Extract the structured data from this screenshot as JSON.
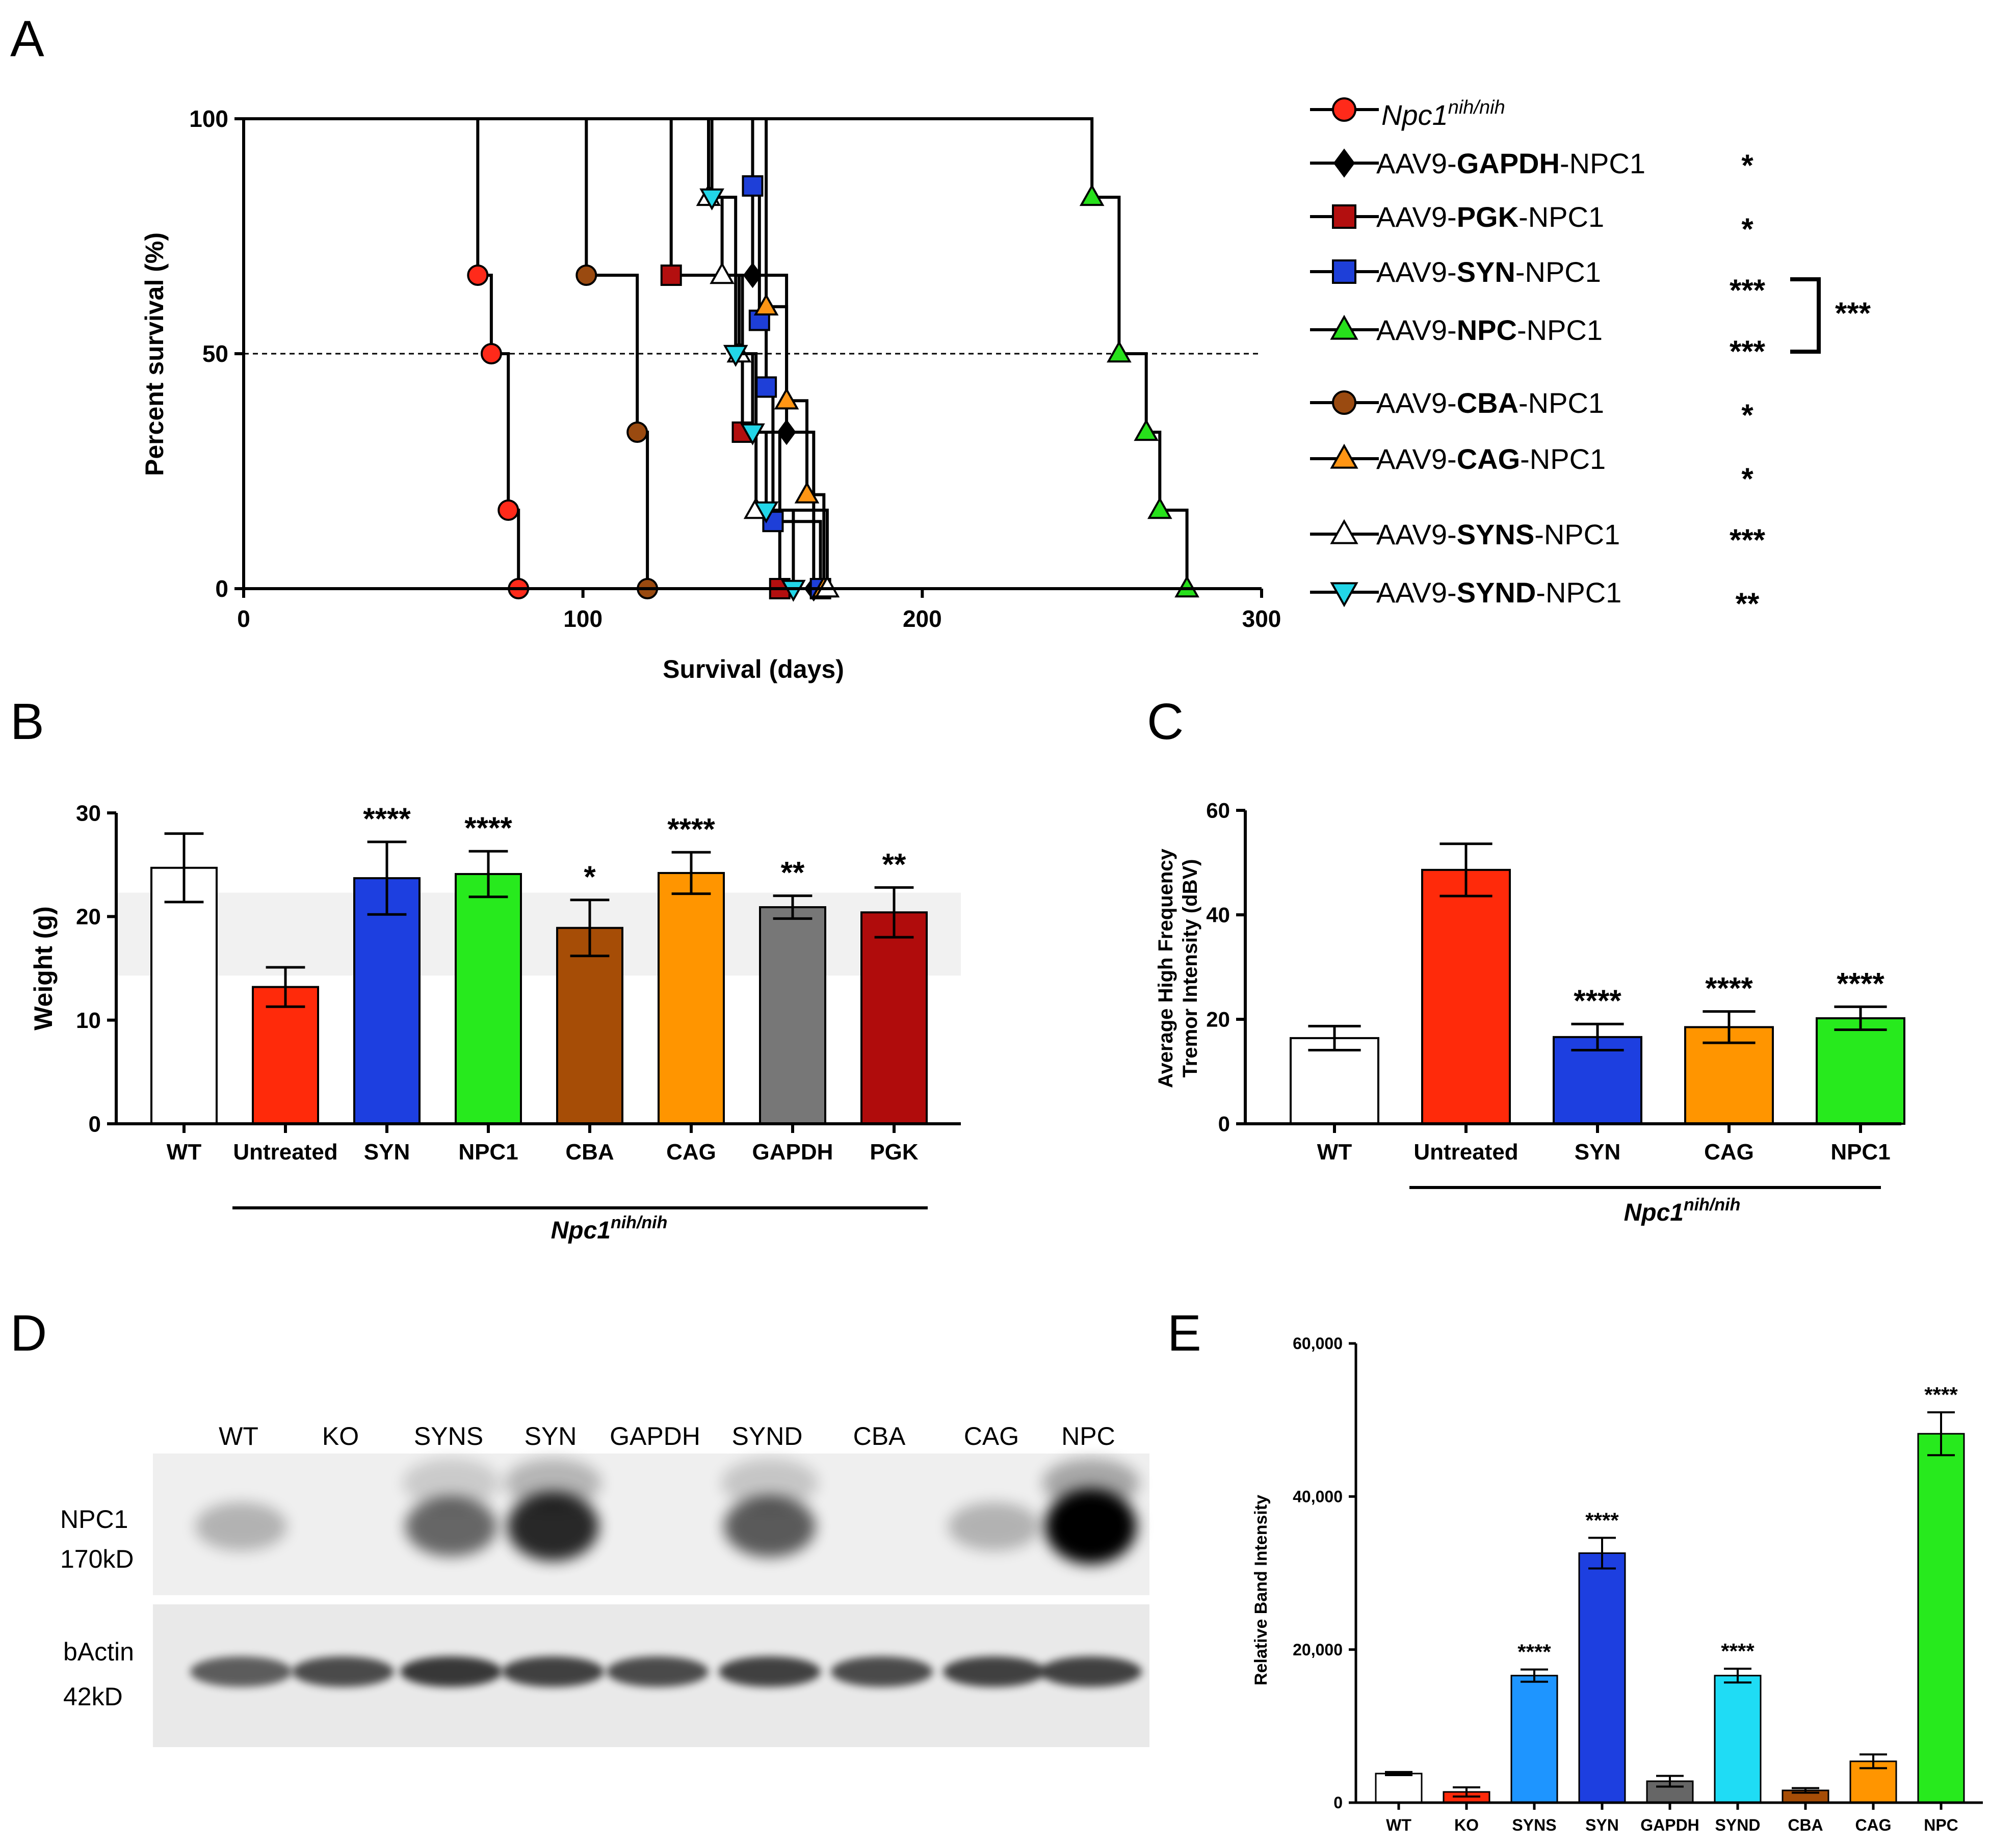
{
  "panels": {
    "A": {
      "letter": "A"
    },
    "B": {
      "letter": "B"
    },
    "C": {
      "letter": "C"
    },
    "D": {
      "letter": "D"
    },
    "E": {
      "letter": "E"
    }
  },
  "chart_data": [
    {
      "id": "A",
      "type": "line",
      "subtype": "kaplan-meier",
      "xlabel": "Survival (days)",
      "ylabel": "Percent survival (%)",
      "xlim": [
        0,
        300
      ],
      "ylim": [
        0,
        100
      ],
      "xticks": [
        "0",
        "100",
        "200",
        "300"
      ],
      "yticks": [
        "0",
        "50",
        "100"
      ],
      "reference_line": 50,
      "series": [
        {
          "name_parts": [
            "Npc1",
            "nih/nih",
            ""
          ],
          "italic": true,
          "color": "#ff2a1a",
          "marker": "circle",
          "sig": "",
          "steps": [
            [
              0,
              100
            ],
            [
              69,
              100
            ],
            [
              69,
              66.7
            ],
            [
              73,
              66.7
            ],
            [
              73,
              50
            ],
            [
              78,
              50
            ],
            [
              78,
              16.7
            ],
            [
              81,
              16.7
            ],
            [
              81,
              0
            ]
          ]
        },
        {
          "name_parts": [
            "AAV9-",
            "GAPDH",
            "-NPC1"
          ],
          "color": "#000000",
          "marker": "diamond",
          "sig": "*",
          "steps": [
            [
              0,
              100
            ],
            [
              150,
              100
            ],
            [
              150,
              66.7
            ],
            [
              160,
              66.7
            ],
            [
              160,
              33.3
            ],
            [
              168,
              33.3
            ],
            [
              168,
              0
            ]
          ]
        },
        {
          "name_parts": [
            "AAV9-",
            "PGK",
            "-NPC1"
          ],
          "color": "#b30f0f",
          "marker": "square",
          "sig": "*",
          "steps": [
            [
              0,
              100
            ],
            [
              126,
              100
            ],
            [
              126,
              66.7
            ],
            [
              147,
              66.7
            ],
            [
              147,
              33.3
            ],
            [
              158,
              33.3
            ],
            [
              158,
              0
            ]
          ]
        },
        {
          "name_parts": [
            "AAV9-",
            "SYN",
            "-NPC1"
          ],
          "color": "#1e3fd8",
          "marker": "square",
          "sig": "***",
          "steps": [
            [
              0,
              100
            ],
            [
              150,
              100
            ],
            [
              150,
              85.7
            ],
            [
              152,
              85.7
            ],
            [
              152,
              57.1
            ],
            [
              154,
              57.1
            ],
            [
              154,
              42.9
            ],
            [
              156,
              42.9
            ],
            [
              156,
              14.3
            ],
            [
              170,
              14.3
            ],
            [
              170,
              0
            ]
          ]
        },
        {
          "name_parts": [
            "AAV9-",
            "NPC",
            "-NPC1"
          ],
          "color": "#27e01b",
          "marker": "triangle-up",
          "sig": "***",
          "steps": [
            [
              0,
              100
            ],
            [
              250,
              100
            ],
            [
              250,
              83.3
            ],
            [
              258,
              83.3
            ],
            [
              258,
              50
            ],
            [
              266,
              50
            ],
            [
              266,
              33.3
            ],
            [
              270,
              33.3
            ],
            [
              270,
              16.7
            ],
            [
              278,
              16.7
            ],
            [
              278,
              0
            ]
          ]
        },
        {
          "name_parts": [
            "AAV9-",
            "CBA",
            "-NPC1"
          ],
          "color": "#9a4a10",
          "marker": "circle",
          "sig": "*",
          "steps": [
            [
              0,
              100
            ],
            [
              101,
              100
            ],
            [
              101,
              66.7
            ],
            [
              116,
              66.7
            ],
            [
              116,
              33.3
            ],
            [
              119,
              33.3
            ],
            [
              119,
              0
            ]
          ]
        },
        {
          "name_parts": [
            "AAV9-",
            "CAG",
            "-NPC1"
          ],
          "color": "#ff9514",
          "marker": "triangle-up",
          "sig": "*",
          "steps": [
            [
              0,
              100
            ],
            [
              154,
              100
            ],
            [
              154,
              60
            ],
            [
              160,
              60
            ],
            [
              160,
              40
            ],
            [
              166,
              40
            ],
            [
              166,
              20
            ],
            [
              171,
              20
            ],
            [
              171,
              0
            ]
          ]
        },
        {
          "name_parts": [
            "AAV9-",
            "SYNS",
            "-NPC1"
          ],
          "color": "#ffffff",
          "marker": "triangle-up",
          "sig": "***",
          "steps": [
            [
              0,
              100
            ],
            [
              137,
              100
            ],
            [
              137,
              83.3
            ],
            [
              141,
              83.3
            ],
            [
              141,
              66.7
            ],
            [
              146,
              66.7
            ],
            [
              146,
              50
            ],
            [
              151,
              50
            ],
            [
              151,
              16.7
            ],
            [
              172,
              16.7
            ],
            [
              172,
              0
            ]
          ]
        },
        {
          "name_parts": [
            "AAV9-",
            "SYND",
            "-NPC1"
          ],
          "color": "#22d6e8",
          "marker": "triangle-down",
          "sig": "**",
          "steps": [
            [
              0,
              100
            ],
            [
              138,
              100
            ],
            [
              138,
              83.3
            ],
            [
              145,
              83.3
            ],
            [
              145,
              50
            ],
            [
              150,
              50
            ],
            [
              150,
              33.3
            ],
            [
              154,
              33.3
            ],
            [
              154,
              16.7
            ],
            [
              162,
              16.7
            ],
            [
              162,
              0
            ]
          ]
        }
      ],
      "bracket_sig": "***"
    },
    {
      "id": "B",
      "type": "bar",
      "ylabel": "Weight (g)",
      "ylim": [
        0,
        30
      ],
      "yticks": [
        "0",
        "10",
        "20",
        "30"
      ],
      "shaded_band": [
        14.3,
        22.3
      ],
      "categories": [
        "WT",
        "Untreated",
        "SYN",
        "NPC1",
        "CBA",
        "CAG",
        "GAPDH",
        "PGK"
      ],
      "values": [
        24.7,
        13.2,
        23.7,
        24.1,
        18.9,
        24.2,
        20.9,
        20.4
      ],
      "errors": [
        3.3,
        1.9,
        3.5,
        2.2,
        2.7,
        2.0,
        1.1,
        2.4
      ],
      "colors": [
        "#ffffff",
        "#ff2a0a",
        "#1d3fe0",
        "#27ea1d",
        "#a64d06",
        "#ff9500",
        "#777777",
        "#b00c0c"
      ],
      "significance": [
        "",
        "",
        "****",
        "****",
        "*",
        "****",
        "**",
        "**"
      ],
      "group_label_parts": [
        "Npc1",
        "nih/nih"
      ]
    },
    {
      "id": "C",
      "type": "bar",
      "ylabel_lines": [
        "Average High Frequency",
        "Tremor Intensity (dBV)"
      ],
      "ylim": [
        0,
        60
      ],
      "yticks": [
        "0",
        "20",
        "40",
        "60"
      ],
      "categories": [
        "WT",
        "Untreated",
        "SYN",
        "CAG",
        "NPC1"
      ],
      "values": [
        16.4,
        48.6,
        16.6,
        18.5,
        20.2
      ],
      "errors": [
        2.3,
        5.0,
        2.5,
        3.0,
        2.2
      ],
      "colors": [
        "#ffffff",
        "#ff2a0a",
        "#1d3fe0",
        "#ff9500",
        "#27ea1d"
      ],
      "significance": [
        "",
        "",
        "****",
        "****",
        "****"
      ],
      "group_label_parts": [
        "Npc1",
        "nih/nih"
      ]
    },
    {
      "id": "E",
      "type": "bar",
      "ylabel": "Relative Band Intensity",
      "ylim": [
        0,
        60000
      ],
      "yticks": [
        "0",
        "20,000",
        "40,000",
        "60,000"
      ],
      "categories": [
        "WT",
        "KO",
        "SYNS",
        "SYN",
        "GAPDH",
        "SYND",
        "CBA",
        "CAG",
        "NPC"
      ],
      "values": [
        3800,
        1400,
        16600,
        32600,
        2800,
        16600,
        1600,
        5400,
        48200
      ],
      "errors": [
        200,
        600,
        800,
        2000,
        700,
        900,
        300,
        900,
        2800
      ],
      "colors": [
        "#ffffff",
        "#ff2a0a",
        "#1e95ff",
        "#1d3fe0",
        "#666666",
        "#1fdcf5",
        "#a64d06",
        "#ff9500",
        "#27ea1d"
      ],
      "significance": [
        "",
        "",
        "****",
        "****",
        "",
        "****",
        "",
        "",
        "****"
      ]
    }
  ],
  "blot": {
    "lanes": [
      "WT",
      "KO",
      "SYNS",
      "SYN",
      "GAPDH",
      "SYND",
      "CBA",
      "CAG",
      "NPC"
    ],
    "npc1_band_relative": [
      0.12,
      0.0,
      0.5,
      0.8,
      0.0,
      0.55,
      0.0,
      0.12,
      1.0
    ],
    "actin_band_relative": [
      0.75,
      0.85,
      0.95,
      0.9,
      0.85,
      0.9,
      0.85,
      0.9,
      0.9
    ],
    "label_npc1": [
      "NPC1",
      "170kD"
    ],
    "label_actin": [
      "bActin",
      "42kD"
    ]
  }
}
